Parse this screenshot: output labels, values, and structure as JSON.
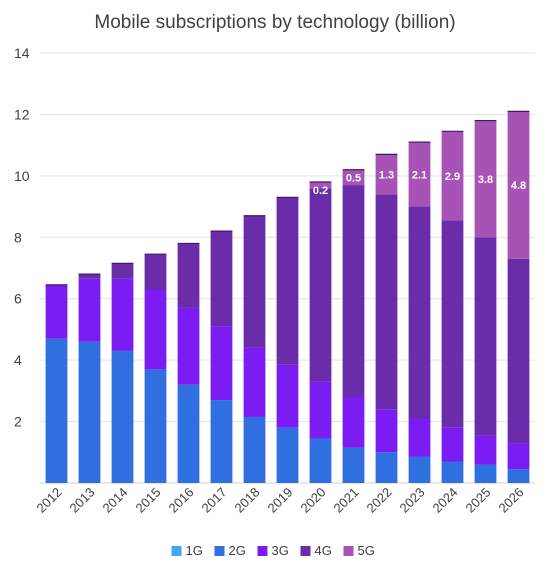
{
  "chart_data": {
    "type": "bar",
    "stacked": true,
    "title": "Mobile subscriptions by technology (billion)",
    "xlabel": "",
    "ylabel": "",
    "ylim": [
      0,
      14
    ],
    "yticks": [
      2,
      4,
      6,
      8,
      10,
      12,
      14
    ],
    "grid": true,
    "legend": "bottom",
    "categories": [
      "2012",
      "2013",
      "2014",
      "2015",
      "2016",
      "2017",
      "2018",
      "2019",
      "2020",
      "2021",
      "2022",
      "2023",
      "2024",
      "2025",
      "2026"
    ],
    "series": [
      {
        "name": "1G",
        "color": "#3fa9f5",
        "values": [
          0,
          0,
          0,
          0,
          0,
          0,
          0,
          0,
          0,
          0,
          0,
          0,
          0,
          0,
          0
        ]
      },
      {
        "name": "2G",
        "color": "#2f6fe0",
        "values": [
          4.7,
          4.6,
          4.3,
          3.7,
          3.2,
          2.7,
          2.15,
          1.8,
          1.45,
          1.15,
          1.0,
          0.85,
          0.7,
          0.6,
          0.45
        ]
      },
      {
        "name": "3G",
        "color": "#7b1cf2",
        "values": [
          1.75,
          2.05,
          2.35,
          2.6,
          2.5,
          2.4,
          2.25,
          2.05,
          1.85,
          1.65,
          1.4,
          1.25,
          1.1,
          0.95,
          0.85
        ]
      },
      {
        "name": "4G",
        "color": "#6a2ca8",
        "values": [
          0.0,
          0.15,
          0.5,
          1.15,
          2.1,
          3.1,
          4.3,
          5.45,
          6.3,
          6.9,
          7.0,
          6.9,
          6.75,
          6.45,
          6.0
        ]
      },
      {
        "name": "5G",
        "color": "#a653b5",
        "values": [
          0,
          0,
          0,
          0,
          0,
          0,
          0,
          0,
          0.2,
          0.5,
          1.3,
          2.1,
          2.9,
          3.8,
          4.8
        ]
      }
    ],
    "data_labels": [
      "",
      "",
      "",
      "",
      "",
      "",
      "",
      "",
      "0.2",
      "0.5",
      "1.3",
      "2.1",
      "2.9",
      "3.8",
      "4.8"
    ]
  }
}
